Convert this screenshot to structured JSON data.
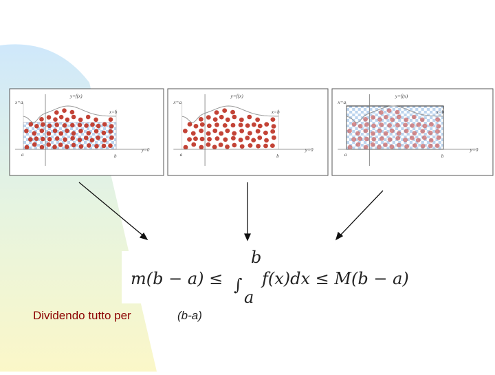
{
  "panels": [
    {
      "labels": {
        "x_a": "x=a",
        "y_fx": "y=f(x)",
        "x_b": "x=b",
        "a": "a",
        "b": "b",
        "y_0": "y=0"
      }
    },
    {
      "labels": {
        "x_a": "x=a",
        "y_fx": "y=f(x)",
        "x_b": "x=b",
        "a": "a",
        "b": "b",
        "y_0": "y=0"
      }
    },
    {
      "labels": {
        "x_a": "x=a",
        "y_fx": "y=f(x)",
        "x_b": "x=b",
        "a": "a",
        "b": "b",
        "y_0": "y=0"
      }
    }
  ],
  "formula": {
    "left": "m(b − a) ≤",
    "integral": "∫",
    "upper": "b",
    "lower": "a",
    "right": "f(x)dx ≤ M(b − a)"
  },
  "caption": {
    "text": "Dividendo tutto per",
    "divisor": "(b-a)"
  }
}
